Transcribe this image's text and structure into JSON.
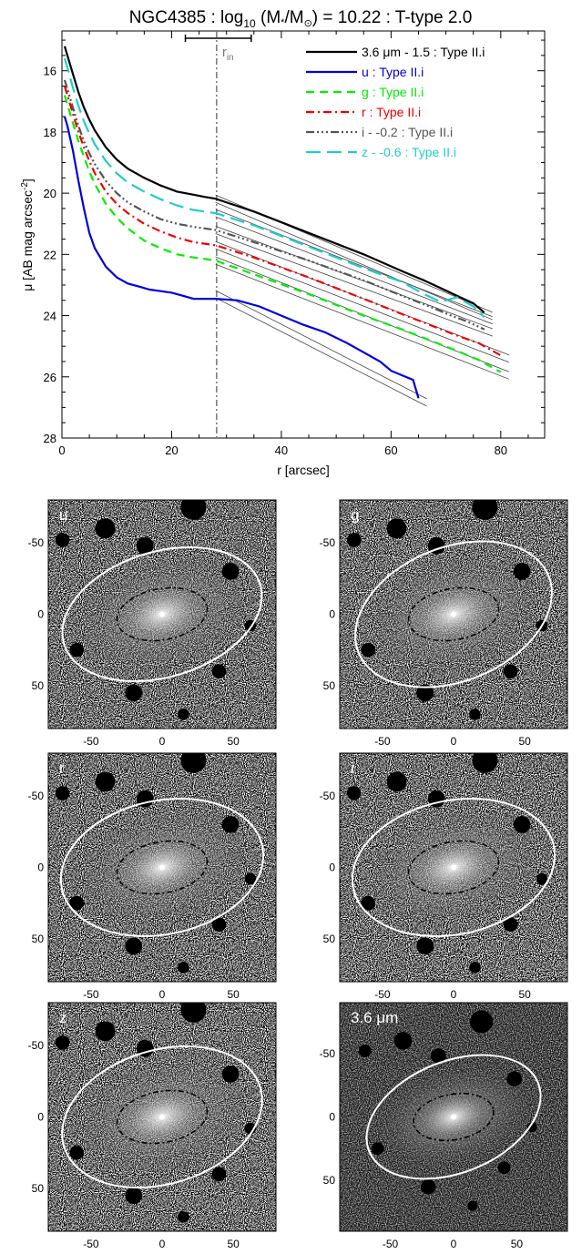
{
  "chart_data": [
    {
      "type": "line",
      "title": "NGC4385 : log",
      "title_sub": "10",
      "title_tail_a": " (M",
      "title_tail_b": "/M",
      "title_tail_c": ") = 10.22 : T-type 2.0",
      "xlabel": "r [arcsec]",
      "ylabel": "μ [AB mag arcsec",
      "ylabel_sup": "-2",
      "ylabel_end": "]",
      "xlim": [
        0,
        88
      ],
      "ylim": [
        28,
        14.7
      ],
      "y_inverted": true,
      "x_ticks": [
        "0",
        "20",
        "40",
        "60",
        "80"
      ],
      "y_ticks": [
        "16",
        "18",
        "20",
        "22",
        "24",
        "26",
        "28"
      ],
      "x_tick_values": [
        0,
        20,
        40,
        60,
        80
      ],
      "y_tick_values": [
        16,
        18,
        20,
        22,
        24,
        26,
        28
      ],
      "annotation": {
        "label": "r",
        "sub": "in",
        "x": 28.2,
        "err_lo": 22.5,
        "err_hi": 34.5
      },
      "legend_position": "top-right",
      "series": [
        {
          "name": "3.6 μm - 1.5 : Type II.i",
          "color": "#000000",
          "dash": "solid",
          "x": [
            0.5,
            1,
            2,
            3,
            4,
            5,
            6,
            8,
            10,
            12,
            15,
            18,
            21,
            24,
            26,
            28
          ],
          "y": [
            15.2,
            15.5,
            16.1,
            16.7,
            17.2,
            17.6,
            17.95,
            18.5,
            18.9,
            19.2,
            19.5,
            19.75,
            19.95,
            20.05,
            20.12,
            20.18
          ],
          "outer_x": [
            28,
            35,
            45,
            55,
            62,
            66,
            69,
            72,
            75,
            77
          ],
          "outer_y": [
            20.18,
            20.6,
            21.3,
            22.0,
            22.55,
            22.85,
            23.1,
            23.35,
            23.6,
            23.9
          ]
        },
        {
          "name": "u : Type II.i",
          "color": "#0000dd",
          "dash": "solid",
          "x": [
            0.5,
            1,
            2,
            3,
            4,
            5,
            6,
            8,
            10,
            12,
            14,
            16,
            18,
            20,
            22,
            24,
            26,
            28
          ],
          "y": [
            17.5,
            17.8,
            18.6,
            19.6,
            20.5,
            21.3,
            21.8,
            22.4,
            22.75,
            22.95,
            23.05,
            23.15,
            23.2,
            23.25,
            23.35,
            23.45,
            23.45,
            23.45
          ],
          "outer_x": [
            28,
            32,
            36,
            40,
            44,
            48,
            52,
            55,
            58,
            60,
            62,
            64,
            65
          ],
          "outer_y": [
            23.3,
            23.5,
            23.7,
            24.0,
            24.3,
            24.55,
            24.9,
            25.2,
            25.5,
            25.8,
            25.95,
            26.1,
            26.7
          ]
        },
        {
          "name": "g : Type II.i",
          "color": "#00ee00",
          "dash": "dash",
          "x": [
            0.5,
            1,
            2,
            3,
            4,
            5,
            6,
            8,
            10,
            12,
            15,
            18,
            21,
            24,
            26,
            28
          ],
          "y": [
            16.8,
            17.1,
            17.7,
            18.3,
            18.8,
            19.3,
            19.7,
            20.35,
            20.8,
            21.15,
            21.55,
            21.8,
            22.0,
            22.1,
            22.15,
            22.2
          ],
          "outer_x": [
            28,
            35,
            45,
            55,
            62,
            67,
            72,
            76,
            80
          ],
          "outer_y": [
            22.2,
            22.65,
            23.3,
            24.0,
            24.45,
            24.8,
            25.15,
            25.45,
            25.85
          ]
        },
        {
          "name": "r : Type II.i",
          "color": "#ee0000",
          "dash": "dashdot",
          "x": [
            0.5,
            1,
            2,
            3,
            4,
            5,
            6,
            8,
            10,
            12,
            15,
            18,
            21,
            24,
            26,
            28
          ],
          "y": [
            16.5,
            16.8,
            17.4,
            18.0,
            18.5,
            18.95,
            19.35,
            19.95,
            20.35,
            20.65,
            21.0,
            21.25,
            21.45,
            21.6,
            21.65,
            21.7
          ],
          "outer_x": [
            28,
            35,
            45,
            55,
            62,
            67,
            72,
            76,
            80
          ],
          "outer_y": [
            21.7,
            22.1,
            22.75,
            23.45,
            23.95,
            24.3,
            24.65,
            24.9,
            25.3
          ]
        },
        {
          "name": "i - -0.2 : Type II.i",
          "color": "#555555",
          "dash": "dashdotdotdot",
          "x": [
            0.5,
            1,
            2,
            3,
            4,
            5,
            6,
            8,
            10,
            12,
            15,
            18,
            21,
            24,
            26,
            28
          ],
          "y": [
            16.3,
            16.6,
            17.2,
            17.8,
            18.3,
            18.7,
            19.05,
            19.6,
            20.0,
            20.3,
            20.6,
            20.85,
            21.0,
            21.1,
            21.15,
            21.2
          ],
          "outer_x": [
            28,
            35,
            45,
            55,
            62,
            67,
            71,
            74,
            77
          ],
          "outer_y": [
            21.2,
            21.6,
            22.2,
            22.85,
            23.35,
            23.7,
            24.0,
            24.2,
            24.45
          ]
        },
        {
          "name": "z - -0.6 : Type II.i",
          "color": "#22cccc",
          "dash": "longdash",
          "x": [
            0.5,
            1,
            2,
            3,
            4,
            5,
            6,
            8,
            10,
            12,
            15,
            18,
            21,
            24,
            26,
            28
          ],
          "y": [
            15.6,
            15.9,
            16.55,
            17.15,
            17.65,
            18.05,
            18.4,
            18.95,
            19.35,
            19.65,
            19.95,
            20.2,
            20.4,
            20.55,
            20.6,
            20.65
          ],
          "outer_x": [
            28,
            35,
            45,
            55,
            62,
            66,
            69,
            72,
            75,
            77
          ],
          "outer_y": [
            20.65,
            21.05,
            21.75,
            22.45,
            22.9,
            23.3,
            23.55,
            23.4,
            23.7,
            24.05
          ]
        }
      ]
    },
    {
      "type": "heatmap",
      "label": "u",
      "x_ticks": [
        "-50",
        "0",
        "50"
      ],
      "y_ticks": [
        "50",
        "0",
        "-50"
      ],
      "xlim": [
        -80,
        80
      ],
      "ylim": [
        -80,
        80
      ],
      "outer_ellipse": {
        "a": 72,
        "b": 44,
        "pa_deg": -17
      },
      "inner_ellipse": {
        "a": 32,
        "b": 18,
        "pa_deg": -10
      }
    },
    {
      "type": "heatmap",
      "label": "g",
      "x_ticks": [
        "-50",
        "0",
        "50"
      ],
      "y_ticks": [
        "50",
        "0",
        "-50"
      ],
      "xlim": [
        -80,
        80
      ],
      "ylim": [
        -80,
        80
      ],
      "outer_ellipse": {
        "a": 72,
        "b": 47,
        "pa_deg": -22
      },
      "inner_ellipse": {
        "a": 32,
        "b": 18,
        "pa_deg": -10
      }
    },
    {
      "type": "heatmap",
      "label": "r",
      "x_ticks": [
        "-50",
        "0",
        "50"
      ],
      "y_ticks": [
        "50",
        "0",
        "-50"
      ],
      "xlim": [
        -80,
        80
      ],
      "ylim": [
        -80,
        80
      ],
      "outer_ellipse": {
        "a": 72,
        "b": 47,
        "pa_deg": -12
      },
      "inner_ellipse": {
        "a": 32,
        "b": 18,
        "pa_deg": -10
      }
    },
    {
      "type": "heatmap",
      "label": "i",
      "x_ticks": [
        "-50",
        "0",
        "50"
      ],
      "y_ticks": [
        "50",
        "0",
        "-50"
      ],
      "xlim": [
        -80,
        80
      ],
      "ylim": [
        -80,
        80
      ],
      "outer_ellipse": {
        "a": 72,
        "b": 47,
        "pa_deg": -12
      },
      "inner_ellipse": {
        "a": 32,
        "b": 18,
        "pa_deg": -10
      }
    },
    {
      "type": "heatmap",
      "label": "z",
      "x_ticks": [
        "-50",
        "0",
        "50"
      ],
      "y_ticks": [
        "50",
        "0",
        "-50"
      ],
      "xlim": [
        -80,
        80
      ],
      "ylim": [
        -80,
        80
      ],
      "outer_ellipse": {
        "a": 72,
        "b": 47,
        "pa_deg": -17
      },
      "inner_ellipse": {
        "a": 32,
        "b": 18,
        "pa_deg": -10
      }
    },
    {
      "type": "heatmap",
      "label": "3.6 μm",
      "x_ticks": [
        "-50",
        "0",
        "50"
      ],
      "y_ticks": [
        "50",
        "0",
        "-50"
      ],
      "xlim": [
        -90,
        90
      ],
      "ylim": [
        -90,
        90
      ],
      "outer_ellipse": {
        "a": 72,
        "b": 44,
        "pa_deg": -22
      },
      "inner_ellipse": {
        "a": 32,
        "b": 18,
        "pa_deg": -10
      }
    }
  ]
}
